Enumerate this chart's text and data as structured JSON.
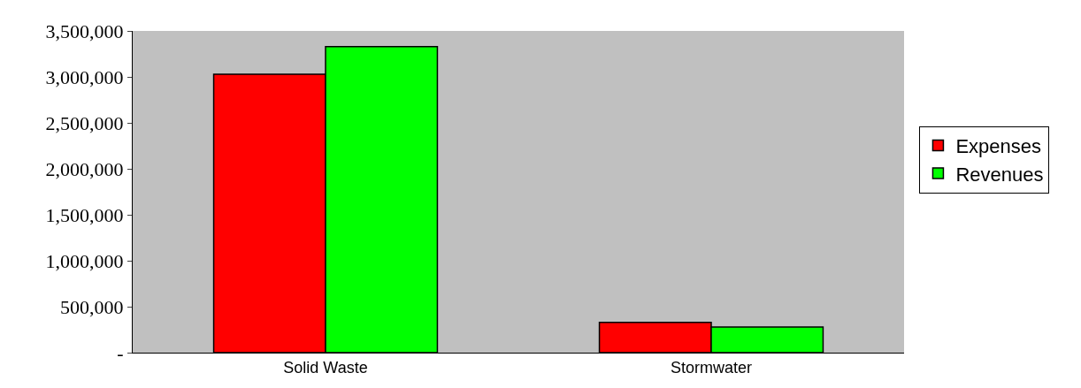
{
  "chart_data": {
    "type": "bar",
    "categories": [
      "Solid Waste",
      "Stormwater"
    ],
    "series": [
      {
        "name": "Expenses",
        "color": "#ff0000",
        "values": [
          3030000,
          330000
        ]
      },
      {
        "name": "Revenues",
        "color": "#00ff00",
        "values": [
          3330000,
          280000
        ]
      }
    ],
    "ylim": [
      0,
      3500000
    ],
    "yticks": [
      {
        "value": 0,
        "label": "-"
      },
      {
        "value": 500000,
        "label": "500,000"
      },
      {
        "value": 1000000,
        "label": "1,000,000"
      },
      {
        "value": 1500000,
        "label": "1,500,000"
      },
      {
        "value": 2000000,
        "label": "2,000,000"
      },
      {
        "value": 2500000,
        "label": "2,500,000"
      },
      {
        "value": 3000000,
        "label": "3,000,000"
      },
      {
        "value": 3500000,
        "label": "3,500,000"
      }
    ],
    "grid": false,
    "legend": "right"
  }
}
